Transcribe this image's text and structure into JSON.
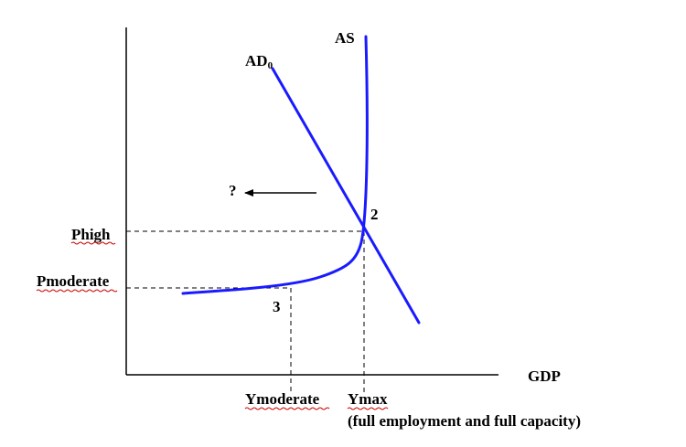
{
  "labels": {
    "as": "AS",
    "ad": "AD",
    "ad_subscript": "0",
    "question": "?",
    "point_2": "2",
    "point_3": "3",
    "phigh": "Phigh",
    "pmoderate": "Pmoderate",
    "gdp": "GDP",
    "ymoderate": "Ymoderate",
    "ymax": "Ymax",
    "ymax_note": "(full employment and full capacity)"
  },
  "colors": {
    "curve": "#1a1aff",
    "axis": "#000000",
    "guide": "#000000",
    "spellcheck": "#cc0000"
  },
  "arrow": {
    "direction": "left"
  }
}
